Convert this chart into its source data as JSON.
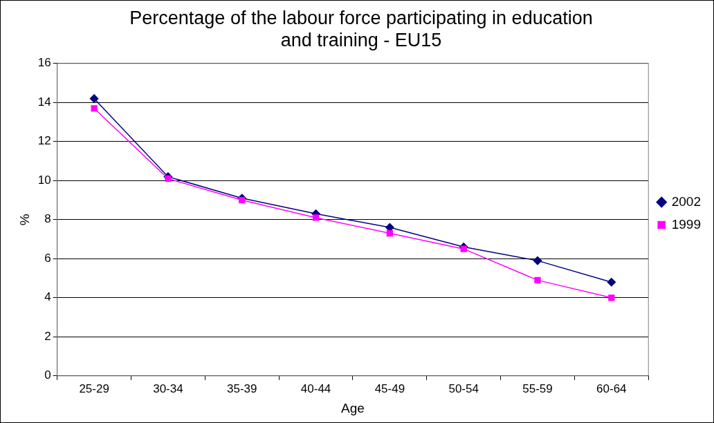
{
  "chart_data": {
    "type": "line",
    "title": "Percentage of the labour force participating in education and training - EU15",
    "xlabel": "Age",
    "ylabel": "%",
    "categories": [
      "25-29",
      "30-34",
      "35-39",
      "40-44",
      "45-49",
      "50-54",
      "55-59",
      "60-64"
    ],
    "series": [
      {
        "name": "2002",
        "color": "#000080",
        "marker": "diamond",
        "values": [
          14.2,
          10.2,
          9.1,
          8.3,
          7.6,
          6.6,
          5.9,
          4.8
        ]
      },
      {
        "name": "1999",
        "color": "#ff00ff",
        "marker": "square",
        "values": [
          13.7,
          10.1,
          9.0,
          8.1,
          7.3,
          6.5,
          4.9,
          4.0
        ]
      }
    ],
    "ylim": [
      0,
      16
    ],
    "yticks": [
      0,
      2,
      4,
      6,
      8,
      10,
      12,
      14,
      16
    ],
    "grid": "y",
    "legend": "right",
    "line_style": "solid"
  }
}
